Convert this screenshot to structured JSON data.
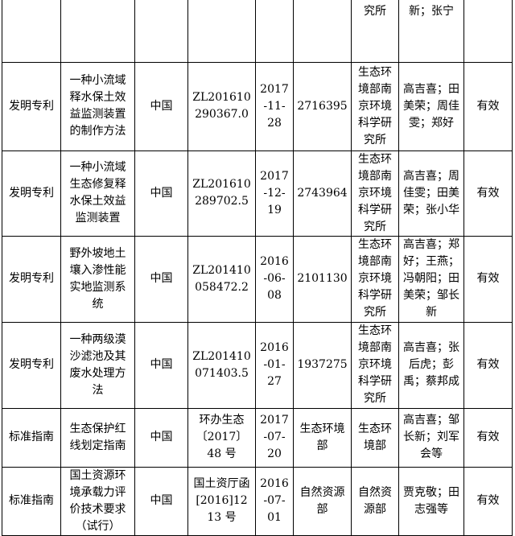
{
  "table": {
    "carryover": {
      "institution": "究所",
      "inventors": "新；张宁"
    },
    "rows": [
      {
        "type": "发明专利",
        "title": "一种小流域释水保土效益监测装置的制作方法",
        "country": "中国",
        "number": "ZL201610290367.0",
        "date": "2017-11-28",
        "code": "2716395",
        "institution": "生态环境部南京环境科学研究所",
        "inventors": "高吉喜；田美荣；周佳雯；郑好",
        "status": "有效"
      },
      {
        "type": "发明专利",
        "title": "一种小流域生态修复释水保土效益监测装置",
        "country": "中国",
        "number": "ZL201610289702.5",
        "date": "2017-12-19",
        "code": "2743964",
        "institution": "生态环境部南京环境科学研究所",
        "inventors": "高吉喜；周佳雯；田美荣；张小华",
        "status": "有效"
      },
      {
        "type": "发明专利",
        "title": "野外坡地土壤入渗性能实地监测系统",
        "country": "中国",
        "number": "ZL201410058472.2",
        "date": "2016-06-08",
        "code": "2101130",
        "institution": "生态环境部南京环境科学研究所",
        "inventors": "高吉喜；郑好；王燕；冯朝阳；田美荣；邹长新",
        "status": "有效"
      },
      {
        "type": "发明专利",
        "title": "一种两级漠沙滤池及其废水处理方法",
        "country": "中国",
        "number": "ZL201410071403.5",
        "date": "2016-01-27",
        "code": "1937275",
        "institution": "生态环境部南京环境科学研究所",
        "inventors": "高吉喜；张后虎；彭禹；蔡邦成",
        "status": "有效"
      },
      {
        "type": "标准指南",
        "title": "生态保护红线划定指南",
        "country": "中国",
        "number": "环办生态〔2017〕48 号",
        "date": "2017-07-20",
        "code": "生态环境部",
        "institution": "生态环境部",
        "inventors": "高吉喜；邹长新；刘军会等",
        "status": "有效"
      },
      {
        "type": "标准指南",
        "title": "国土资源环境承载力评价技术要求（试行）",
        "country": "中国",
        "number": "国土资厅函[2016]1213 号",
        "date": "2016-07-01",
        "code": "自然资源部",
        "institution": "自然资源部",
        "inventors": "贾克敬；田志强等",
        "status": "有效"
      }
    ]
  }
}
